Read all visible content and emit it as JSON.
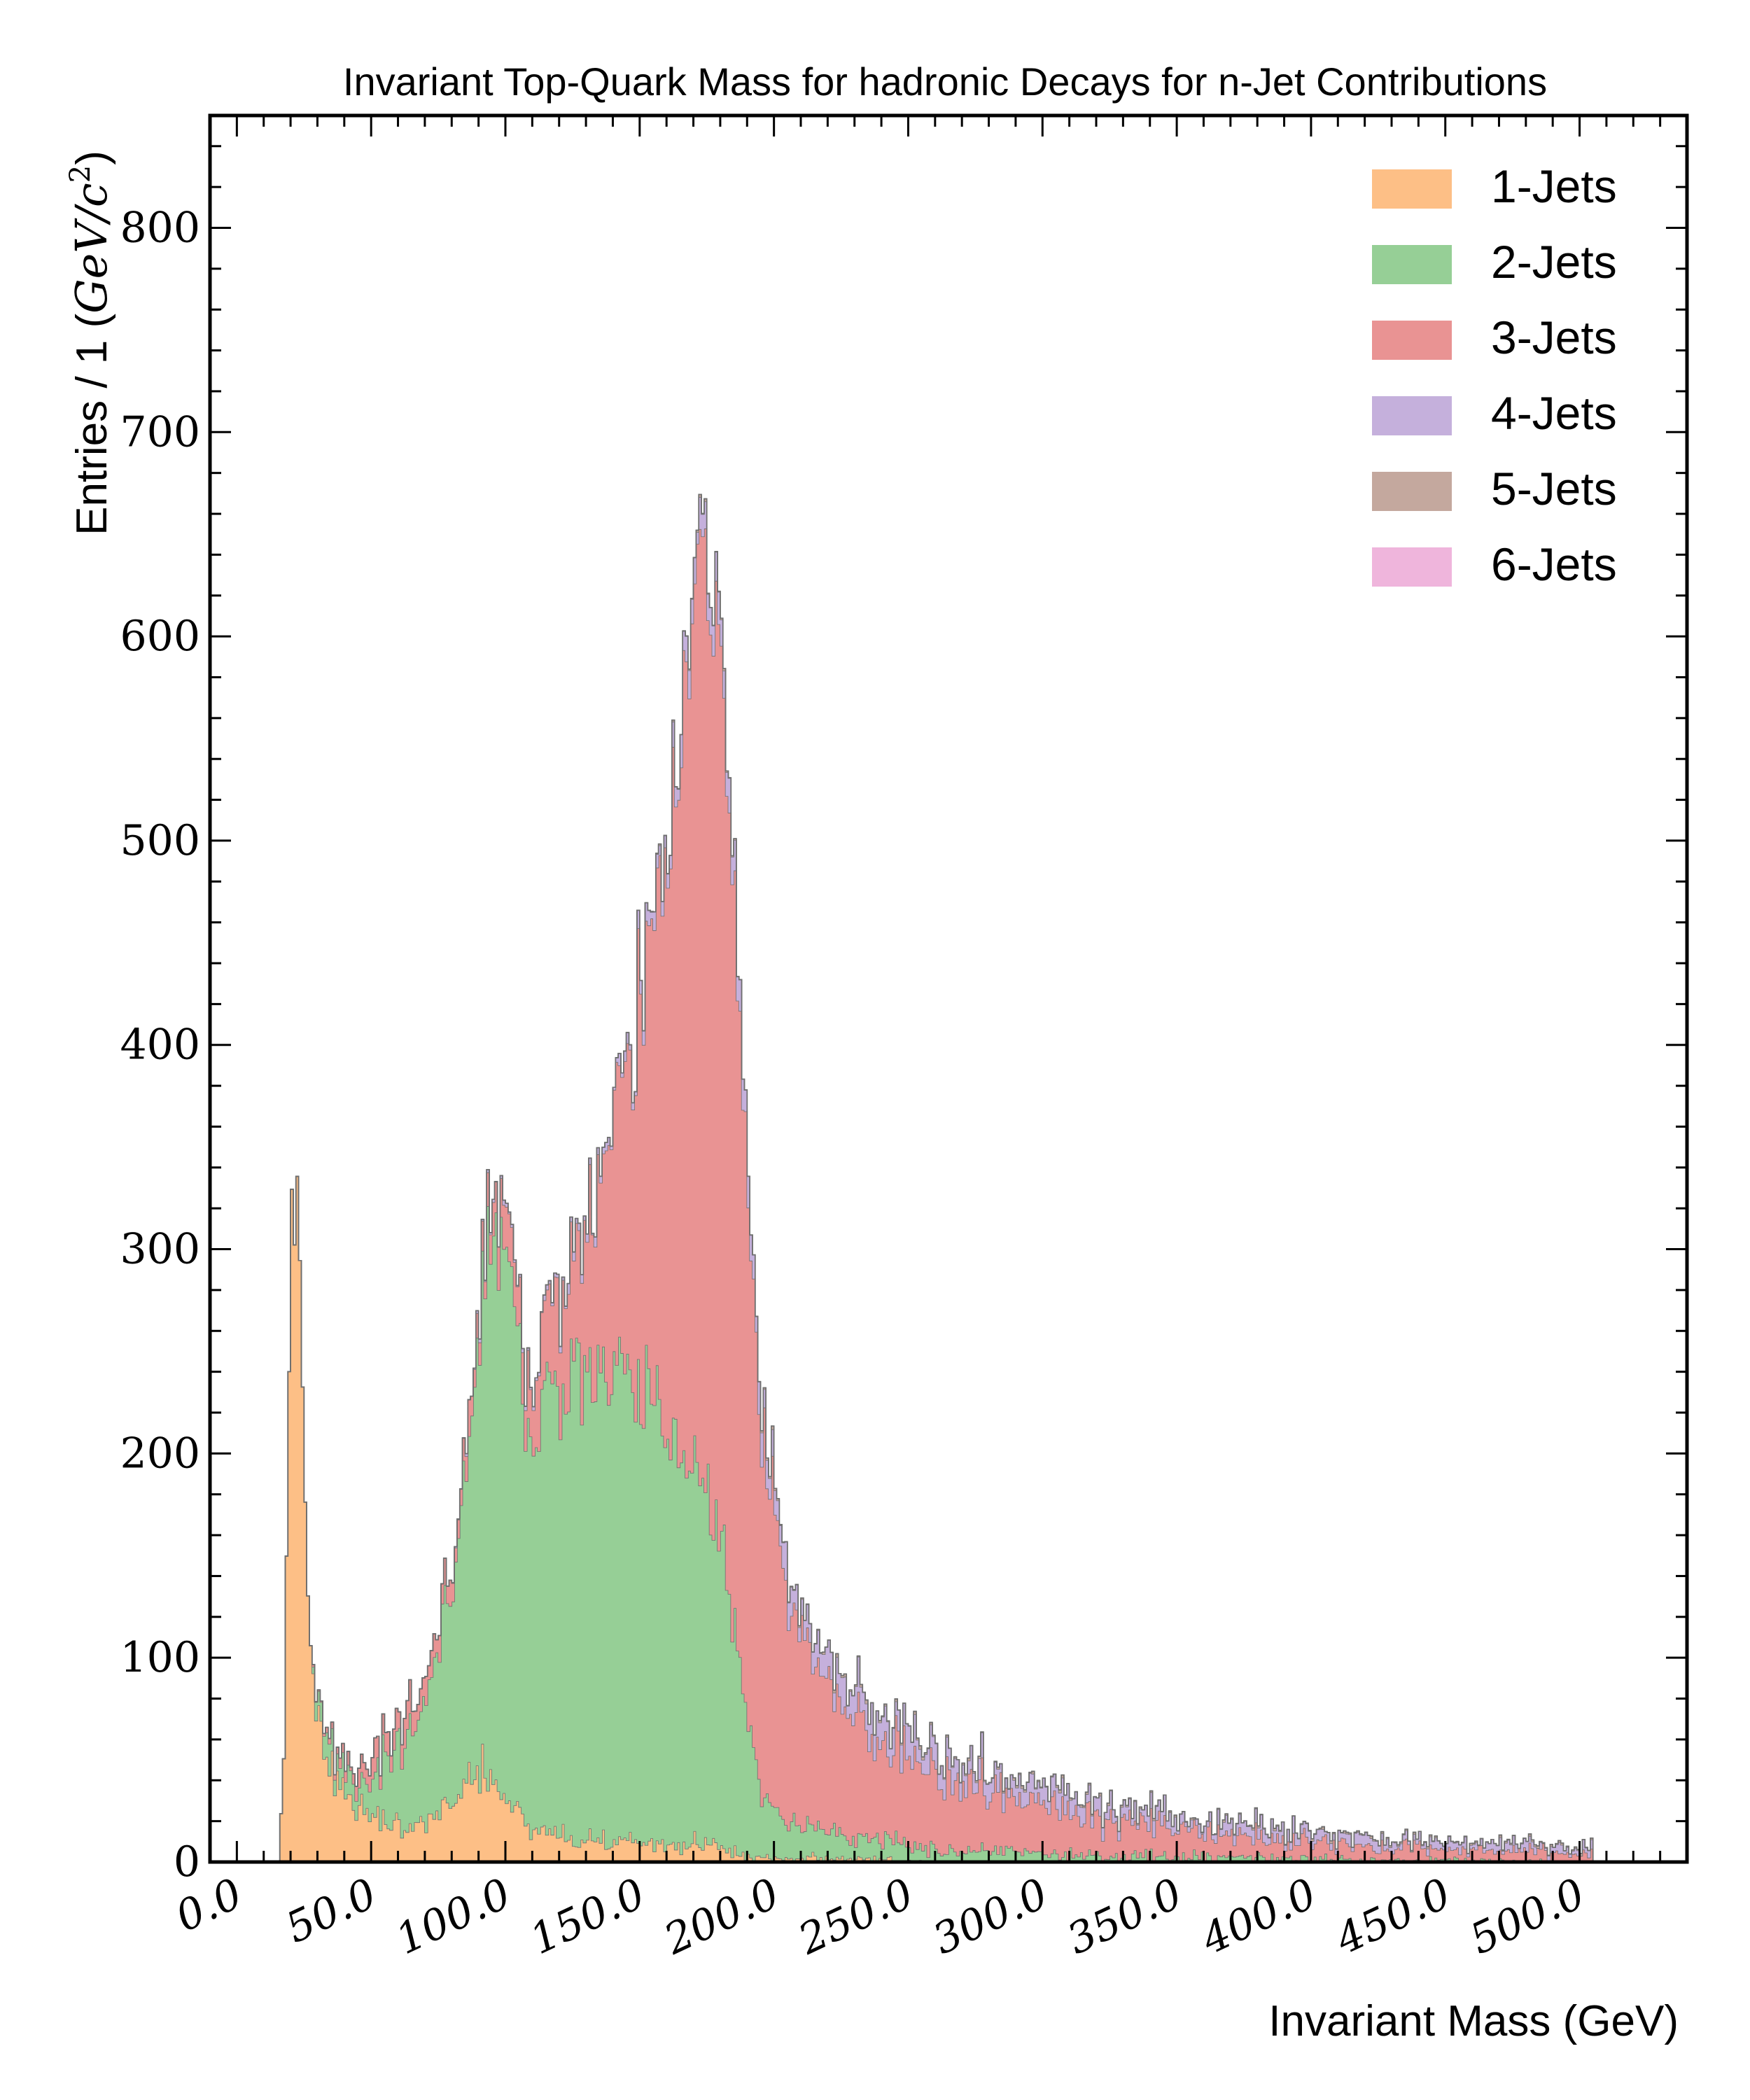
{
  "chart_data": {
    "type": "histogram-stacked",
    "title": "Invariant Top-Quark Mass for hadronic Decays for n-Jet Contributions",
    "xlabel": "Invariant Mass (GeV)",
    "ylabel_prefix": "Entries / 1 (",
    "ylabel_math": "GeV/c",
    "ylabel_sup": "2",
    "ylabel_suffix": ")",
    "xlim": [
      -10,
      540
    ],
    "ylim": [
      0,
      855
    ],
    "bin_width": 1,
    "x_ticks": [
      {
        "value": 0,
        "label": "0.0"
      },
      {
        "value": 50,
        "label": "50.0"
      },
      {
        "value": 100,
        "label": "100.0"
      },
      {
        "value": 150,
        "label": "150.0"
      },
      {
        "value": 200,
        "label": "200.0"
      },
      {
        "value": 250,
        "label": "250.0"
      },
      {
        "value": 300,
        "label": "300.0"
      },
      {
        "value": 350,
        "label": "350.0"
      },
      {
        "value": 400,
        "label": "400.0"
      },
      {
        "value": 450,
        "label": "450.0"
      },
      {
        "value": 500,
        "label": "500.0"
      }
    ],
    "y_ticks": [
      {
        "value": 0,
        "label": "0"
      },
      {
        "value": 100,
        "label": "100"
      },
      {
        "value": 200,
        "label": "200"
      },
      {
        "value": 300,
        "label": "300"
      },
      {
        "value": 400,
        "label": "400"
      },
      {
        "value": 500,
        "label": "500"
      },
      {
        "value": 600,
        "label": "600"
      },
      {
        "value": 700,
        "label": "700"
      },
      {
        "value": 800,
        "label": "800"
      }
    ],
    "legend_position": "top-right",
    "series": [
      {
        "name": "1-Jets",
        "color": "#fdbf86",
        "knots": [
          [
            0,
            0
          ],
          [
            16,
            0
          ],
          [
            18,
            80
          ],
          [
            19,
            200
          ],
          [
            20,
            305
          ],
          [
            21,
            330
          ],
          [
            22,
            338
          ],
          [
            23,
            300
          ],
          [
            24,
            250
          ],
          [
            25,
            190
          ],
          [
            26,
            150
          ],
          [
            27,
            120
          ],
          [
            28,
            100
          ],
          [
            30,
            75
          ],
          [
            32,
            60
          ],
          [
            35,
            45
          ],
          [
            40,
            32
          ],
          [
            45,
            25
          ],
          [
            55,
            20
          ],
          [
            65,
            19
          ],
          [
            75,
            24
          ],
          [
            82,
            33
          ],
          [
            88,
            42
          ],
          [
            92,
            46
          ],
          [
            95,
            42
          ],
          [
            98,
            36
          ],
          [
            102,
            27
          ],
          [
            108,
            20
          ],
          [
            115,
            15
          ],
          [
            125,
            12
          ],
          [
            135,
            10
          ],
          [
            150,
            9
          ],
          [
            160,
            9
          ],
          [
            170,
            9
          ],
          [
            178,
            8
          ],
          [
            185,
            5
          ],
          [
            190,
            3
          ],
          [
            200,
            2
          ],
          [
            240,
            1
          ],
          [
            260,
            0
          ]
        ]
      },
      {
        "name": "2-Jets",
        "color": "#96cf96",
        "knots": [
          [
            0,
            0
          ],
          [
            28,
            0
          ],
          [
            30,
            10
          ],
          [
            35,
            15
          ],
          [
            40,
            12
          ],
          [
            45,
            10
          ],
          [
            55,
            28
          ],
          [
            65,
            45
          ],
          [
            72,
            68
          ],
          [
            80,
            105
          ],
          [
            85,
            150
          ],
          [
            90,
            210
          ],
          [
            95,
            270
          ],
          [
            100,
            280
          ],
          [
            103,
            252
          ],
          [
            106,
            210
          ],
          [
            110,
            202
          ],
          [
            115,
            212
          ],
          [
            120,
            222
          ],
          [
            130,
            230
          ],
          [
            140,
            232
          ],
          [
            150,
            222
          ],
          [
            160,
            205
          ],
          [
            170,
            190
          ],
          [
            178,
            165
          ],
          [
            182,
            140
          ],
          [
            186,
            100
          ],
          [
            190,
            70
          ],
          [
            195,
            40
          ],
          [
            200,
            26
          ],
          [
            210,
            16
          ],
          [
            220,
            12
          ],
          [
            235,
            10
          ],
          [
            255,
            8
          ],
          [
            280,
            6
          ],
          [
            310,
            4
          ],
          [
            340,
            3
          ],
          [
            380,
            2
          ],
          [
            420,
            1
          ],
          [
            460,
            1
          ],
          [
            500,
            0
          ]
        ]
      },
      {
        "name": "3-Jets",
        "color": "#e99393",
        "knots": [
          [
            0,
            0
          ],
          [
            28,
            0
          ],
          [
            32,
            2
          ],
          [
            40,
            5
          ],
          [
            50,
            8
          ],
          [
            60,
            10
          ],
          [
            70,
            10
          ],
          [
            80,
            10
          ],
          [
            90,
            12
          ],
          [
            100,
            18
          ],
          [
            110,
            28
          ],
          [
            120,
            45
          ],
          [
            130,
            70
          ],
          [
            140,
            120
          ],
          [
            150,
            190
          ],
          [
            160,
            270
          ],
          [
            165,
            340
          ],
          [
            170,
            420
          ],
          [
            174,
            450
          ],
          [
            178,
            440
          ],
          [
            182,
            410
          ],
          [
            186,
            340
          ],
          [
            190,
            275
          ],
          [
            195,
            185
          ],
          [
            200,
            140
          ],
          [
            205,
            115
          ],
          [
            210,
            95
          ],
          [
            220,
            72
          ],
          [
            230,
            58
          ],
          [
            240,
            50
          ],
          [
            250,
            43
          ],
          [
            260,
            38
          ],
          [
            280,
            30
          ],
          [
            300,
            24
          ],
          [
            320,
            19
          ],
          [
            340,
            15
          ],
          [
            360,
            12
          ],
          [
            380,
            10
          ],
          [
            400,
            8
          ],
          [
            420,
            7
          ],
          [
            440,
            6
          ],
          [
            460,
            5
          ],
          [
            480,
            5
          ],
          [
            500,
            4
          ],
          [
            505,
            4
          ]
        ]
      },
      {
        "name": "4-Jets",
        "color": "#c5b0dc",
        "knots": [
          [
            0,
            0
          ],
          [
            60,
            0
          ],
          [
            80,
            0
          ],
          [
            100,
            1
          ],
          [
            120,
            2
          ],
          [
            140,
            3
          ],
          [
            160,
            8
          ],
          [
            170,
            12
          ],
          [
            180,
            14
          ],
          [
            190,
            13
          ],
          [
            200,
            12
          ],
          [
            210,
            11
          ],
          [
            220,
            12
          ],
          [
            230,
            12
          ],
          [
            240,
            12
          ],
          [
            250,
            11
          ],
          [
            260,
            10
          ],
          [
            280,
            9
          ],
          [
            300,
            8
          ],
          [
            320,
            7
          ],
          [
            340,
            6
          ],
          [
            360,
            5
          ],
          [
            380,
            5
          ],
          [
            400,
            4
          ],
          [
            420,
            4
          ],
          [
            440,
            3
          ],
          [
            460,
            3
          ],
          [
            480,
            3
          ],
          [
            500,
            3
          ],
          [
            505,
            3
          ]
        ]
      },
      {
        "name": "5-Jets",
        "color": "#c4a89e",
        "knots": [
          [
            0,
            0
          ],
          [
            150,
            0
          ],
          [
            200,
            0.5
          ],
          [
            300,
            0.4
          ],
          [
            400,
            0.3
          ],
          [
            505,
            0.2
          ]
        ]
      },
      {
        "name": "6-Jets",
        "color": "#efb5dc",
        "knots": [
          [
            0,
            0
          ],
          [
            505,
            0
          ]
        ]
      }
    ]
  }
}
